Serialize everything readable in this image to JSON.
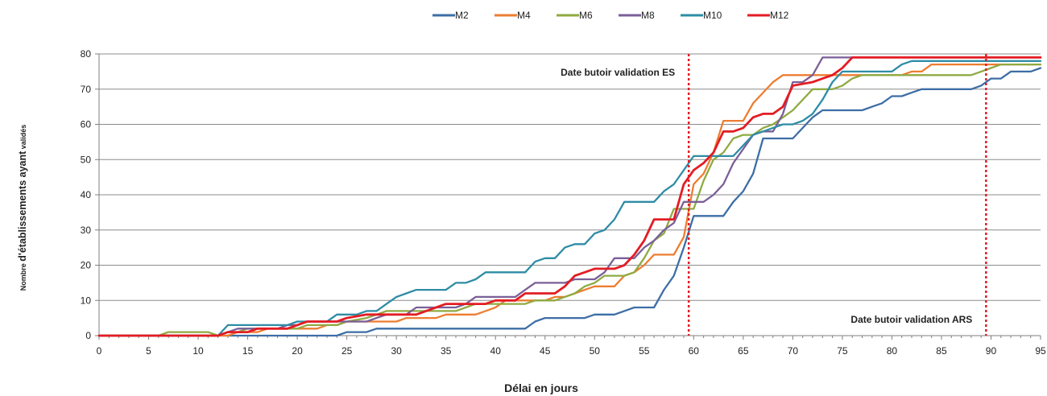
{
  "chart_data": {
    "type": "line",
    "title": "",
    "xlabel": "Délai  en jours",
    "ylabel_prefix": "Nombre ",
    "ylabel_main": "d'établissements ayant",
    "ylabel_suffix": " validés",
    "xlim": [
      0,
      95
    ],
    "ylim": [
      0,
      80
    ],
    "xticks": [
      0,
      5,
      10,
      15,
      20,
      25,
      30,
      35,
      40,
      45,
      50,
      55,
      60,
      65,
      70,
      75,
      80,
      85,
      90,
      95
    ],
    "yticks": [
      0,
      10,
      20,
      30,
      40,
      50,
      60,
      70,
      80
    ],
    "grid": "horizontal",
    "legend_position": "top-center",
    "reference_lines": [
      {
        "x": 59.5,
        "label": "Date butoir validation ES",
        "color": "#e31c23"
      },
      {
        "x": 89.5,
        "label": "Date butoir validation ARS",
        "color": "#e31c23"
      }
    ],
    "series": [
      {
        "name": "M2",
        "color": "#3d6ea6",
        "points": [
          [
            0,
            0
          ],
          [
            24,
            0
          ],
          [
            25,
            1
          ],
          [
            27,
            1
          ],
          [
            28,
            2
          ],
          [
            43,
            2
          ],
          [
            44,
            4
          ],
          [
            45,
            5
          ],
          [
            49,
            5
          ],
          [
            50,
            6
          ],
          [
            52,
            6
          ],
          [
            53,
            7
          ],
          [
            54,
            8
          ],
          [
            56,
            8
          ],
          [
            57,
            13
          ],
          [
            58,
            17
          ],
          [
            59,
            25
          ],
          [
            60,
            34
          ],
          [
            63,
            34
          ],
          [
            64,
            38
          ],
          [
            65,
            41
          ],
          [
            66,
            46
          ],
          [
            67,
            56
          ],
          [
            70,
            56
          ],
          [
            71,
            59
          ],
          [
            72,
            62
          ],
          [
            73,
            64
          ],
          [
            77,
            64
          ],
          [
            78,
            65
          ],
          [
            79,
            66
          ],
          [
            80,
            68
          ],
          [
            81,
            68
          ],
          [
            82,
            69
          ],
          [
            83,
            70
          ],
          [
            88,
            70
          ],
          [
            89,
            71
          ],
          [
            90,
            73
          ],
          [
            91,
            73
          ],
          [
            92,
            75
          ],
          [
            94,
            75
          ],
          [
            95,
            76
          ]
        ]
      },
      {
        "name": "M4",
        "color": "#ed7d31",
        "points": [
          [
            0,
            0
          ],
          [
            13,
            0
          ],
          [
            14,
            1
          ],
          [
            16,
            1
          ],
          [
            17,
            2
          ],
          [
            22,
            2
          ],
          [
            23,
            3
          ],
          [
            24,
            3
          ],
          [
            25,
            4
          ],
          [
            30,
            4
          ],
          [
            31,
            5
          ],
          [
            34,
            5
          ],
          [
            35,
            6
          ],
          [
            38,
            6
          ],
          [
            39,
            7
          ],
          [
            40,
            8
          ],
          [
            41,
            10
          ],
          [
            45,
            10
          ],
          [
            46,
            11
          ],
          [
            47,
            11
          ],
          [
            48,
            12
          ],
          [
            49,
            13
          ],
          [
            50,
            14
          ],
          [
            52,
            14
          ],
          [
            53,
            17
          ],
          [
            54,
            18
          ],
          [
            55,
            20
          ],
          [
            56,
            23
          ],
          [
            58,
            23
          ],
          [
            59,
            28
          ],
          [
            60,
            43
          ],
          [
            61,
            46
          ],
          [
            62,
            52
          ],
          [
            63,
            61
          ],
          [
            65,
            61
          ],
          [
            66,
            66
          ],
          [
            67,
            69
          ],
          [
            68,
            72
          ],
          [
            69,
            74
          ],
          [
            81,
            74
          ],
          [
            82,
            75
          ],
          [
            83,
            75
          ],
          [
            84,
            77
          ],
          [
            95,
            77
          ]
        ]
      },
      {
        "name": "M6",
        "color": "#8faa42",
        "points": [
          [
            0,
            0
          ],
          [
            6,
            0
          ],
          [
            7,
            1
          ],
          [
            11,
            1
          ],
          [
            12,
            0
          ],
          [
            13,
            1
          ],
          [
            14,
            1
          ],
          [
            15,
            2
          ],
          [
            20,
            2
          ],
          [
            21,
            3
          ],
          [
            24,
            3
          ],
          [
            25,
            4
          ],
          [
            27,
            5
          ],
          [
            28,
            6
          ],
          [
            29,
            7
          ],
          [
            33,
            7
          ],
          [
            34,
            7
          ],
          [
            36,
            7
          ],
          [
            37,
            8
          ],
          [
            38,
            9
          ],
          [
            43,
            9
          ],
          [
            44,
            10
          ],
          [
            46,
            10
          ],
          [
            47,
            11
          ],
          [
            48,
            12
          ],
          [
            49,
            14
          ],
          [
            50,
            15
          ],
          [
            51,
            17
          ],
          [
            53,
            17
          ],
          [
            54,
            18
          ],
          [
            55,
            22
          ],
          [
            56,
            27
          ],
          [
            57,
            29
          ],
          [
            58,
            36
          ],
          [
            59,
            36
          ],
          [
            60,
            36
          ],
          [
            61,
            44
          ],
          [
            62,
            50
          ],
          [
            63,
            52
          ],
          [
            64,
            56
          ],
          [
            65,
            57
          ],
          [
            66,
            57
          ],
          [
            67,
            59
          ],
          [
            68,
            60
          ],
          [
            69,
            62
          ],
          [
            70,
            64
          ],
          [
            71,
            67
          ],
          [
            72,
            70
          ],
          [
            74,
            70
          ],
          [
            75,
            71
          ],
          [
            76,
            73
          ],
          [
            77,
            74
          ],
          [
            88,
            74
          ],
          [
            89,
            75
          ],
          [
            90,
            76
          ],
          [
            91,
            77
          ],
          [
            95,
            77
          ]
        ]
      },
      {
        "name": "M8",
        "color": "#7a5f98",
        "points": [
          [
            0,
            0
          ],
          [
            12,
            0
          ],
          [
            13,
            1
          ],
          [
            14,
            2
          ],
          [
            18,
            2
          ],
          [
            19,
            3
          ],
          [
            20,
            3
          ],
          [
            21,
            4
          ],
          [
            27,
            4
          ],
          [
            28,
            5
          ],
          [
            29,
            6
          ],
          [
            31,
            6
          ],
          [
            32,
            8
          ],
          [
            36,
            8
          ],
          [
            37,
            9
          ],
          [
            38,
            11
          ],
          [
            42,
            11
          ],
          [
            43,
            13
          ],
          [
            44,
            15
          ],
          [
            47,
            15
          ],
          [
            48,
            16
          ],
          [
            50,
            16
          ],
          [
            51,
            18
          ],
          [
            52,
            22
          ],
          [
            54,
            22
          ],
          [
            55,
            25
          ],
          [
            56,
            27
          ],
          [
            57,
            30
          ],
          [
            58,
            32
          ],
          [
            59,
            38
          ],
          [
            61,
            38
          ],
          [
            62,
            40
          ],
          [
            63,
            43
          ],
          [
            64,
            49
          ],
          [
            65,
            53
          ],
          [
            66,
            57
          ],
          [
            67,
            58
          ],
          [
            68,
            58
          ],
          [
            69,
            63
          ],
          [
            70,
            72
          ],
          [
            71,
            72
          ],
          [
            72,
            74
          ],
          [
            73,
            79
          ],
          [
            95,
            79
          ]
        ]
      },
      {
        "name": "M10",
        "color": "#2e8ca5",
        "points": [
          [
            0,
            0
          ],
          [
            12,
            0
          ],
          [
            13,
            3
          ],
          [
            19,
            3
          ],
          [
            20,
            4
          ],
          [
            23,
            4
          ],
          [
            24,
            6
          ],
          [
            26,
            6
          ],
          [
            27,
            7
          ],
          [
            28,
            7
          ],
          [
            29,
            9
          ],
          [
            30,
            11
          ],
          [
            31,
            12
          ],
          [
            32,
            13
          ],
          [
            35,
            13
          ],
          [
            36,
            15
          ],
          [
            37,
            15
          ],
          [
            38,
            16
          ],
          [
            39,
            18
          ],
          [
            43,
            18
          ],
          [
            44,
            21
          ],
          [
            45,
            22
          ],
          [
            46,
            22
          ],
          [
            47,
            25
          ],
          [
            48,
            26
          ],
          [
            49,
            26
          ],
          [
            50,
            29
          ],
          [
            51,
            30
          ],
          [
            52,
            33
          ],
          [
            53,
            38
          ],
          [
            56,
            38
          ],
          [
            57,
            41
          ],
          [
            58,
            43
          ],
          [
            59,
            47
          ],
          [
            60,
            51
          ],
          [
            62,
            51
          ],
          [
            63,
            51
          ],
          [
            64,
            51
          ],
          [
            65,
            54
          ],
          [
            66,
            57
          ],
          [
            67,
            58
          ],
          [
            68,
            59
          ],
          [
            69,
            60
          ],
          [
            70,
            60
          ],
          [
            71,
            61
          ],
          [
            72,
            63
          ],
          [
            73,
            67
          ],
          [
            74,
            72
          ],
          [
            75,
            75
          ],
          [
            79,
            75
          ],
          [
            80,
            75
          ],
          [
            81,
            77
          ],
          [
            82,
            78
          ],
          [
            95,
            78
          ]
        ]
      },
      {
        "name": "M12",
        "color": "#e31c23",
        "points": [
          [
            0,
            0
          ],
          [
            12,
            0
          ],
          [
            13,
            1
          ],
          [
            14,
            1
          ],
          [
            15,
            1
          ],
          [
            16,
            2
          ],
          [
            19,
            2
          ],
          [
            20,
            3
          ],
          [
            21,
            4
          ],
          [
            24,
            4
          ],
          [
            25,
            5
          ],
          [
            27,
            6
          ],
          [
            30,
            6
          ],
          [
            31,
            6
          ],
          [
            32,
            6
          ],
          [
            33,
            7
          ],
          [
            34,
            8
          ],
          [
            35,
            9
          ],
          [
            38,
            9
          ],
          [
            39,
            9
          ],
          [
            40,
            10
          ],
          [
            42,
            10
          ],
          [
            43,
            12
          ],
          [
            46,
            12
          ],
          [
            47,
            14
          ],
          [
            48,
            17
          ],
          [
            49,
            18
          ],
          [
            50,
            19
          ],
          [
            52,
            19
          ],
          [
            53,
            20
          ],
          [
            54,
            23
          ],
          [
            55,
            27
          ],
          [
            56,
            33
          ],
          [
            58,
            33
          ],
          [
            59,
            43
          ],
          [
            60,
            47
          ],
          [
            61,
            49
          ],
          [
            62,
            52
          ],
          [
            63,
            58
          ],
          [
            64,
            58
          ],
          [
            65,
            59
          ],
          [
            66,
            62
          ],
          [
            67,
            63
          ],
          [
            68,
            63
          ],
          [
            69,
            65
          ],
          [
            70,
            71
          ],
          [
            72,
            72
          ],
          [
            73,
            73
          ],
          [
            74,
            74
          ],
          [
            75,
            76
          ],
          [
            76,
            79
          ],
          [
            95,
            79
          ]
        ]
      }
    ]
  }
}
